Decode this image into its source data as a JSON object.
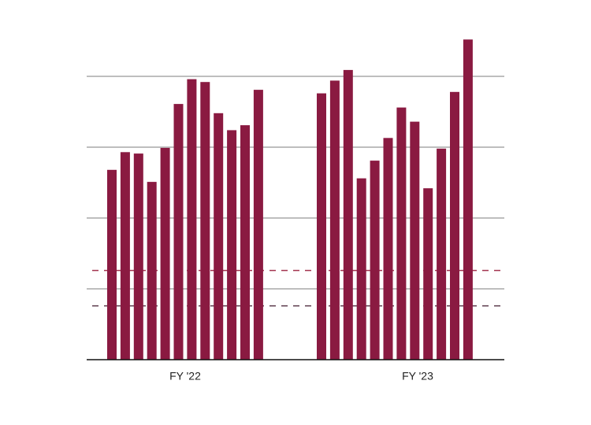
{
  "chart_data": {
    "type": "grouped-bar",
    "color": "#8a1a41",
    "groups": [
      {
        "label": "FY '22",
        "values": [
          2.68,
          2.93,
          2.91,
          2.51,
          2.99,
          3.61,
          3.96,
          3.92,
          3.48,
          3.24,
          3.31,
          3.81
        ]
      },
      {
        "label": "FY '23",
        "values": [
          3.76,
          3.94,
          4.09,
          2.56,
          2.81,
          3.13,
          3.56,
          3.36,
          2.42,
          2.98,
          3.78,
          4.52
        ]
      }
    ],
    "ylim": [
      0,
      4.6
    ],
    "yticks": [
      0,
      1,
      2,
      3,
      4
    ],
    "grid": true,
    "reference_lines": [
      {
        "value": 1.26,
        "color": "#a3344f"
      },
      {
        "value": 0.76,
        "color": "#5b3a4b"
      }
    ]
  }
}
